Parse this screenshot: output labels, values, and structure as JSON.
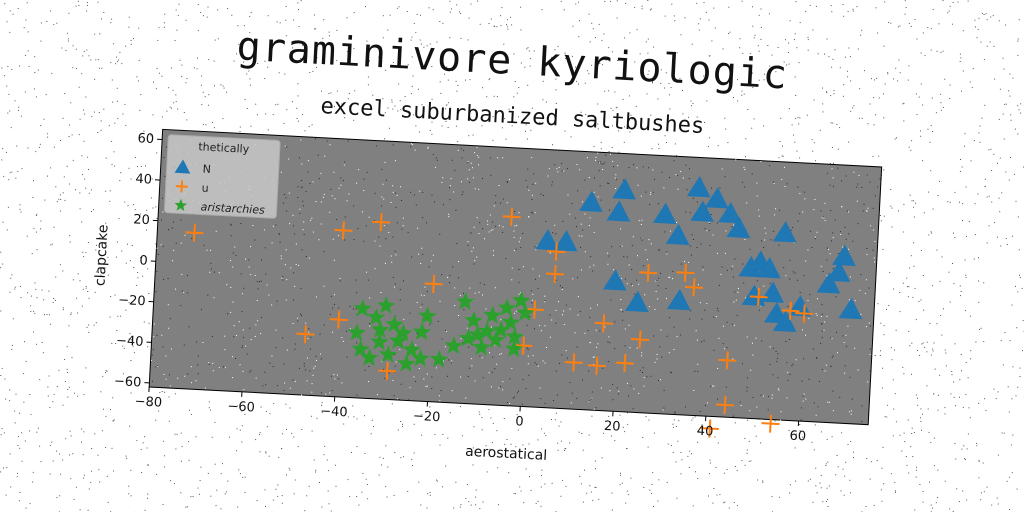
{
  "chart_data": {
    "type": "scatter",
    "title": "graminivore kyriologic",
    "subtitle": "excel suburbanized saltbushes",
    "xlabel": "aerostatical",
    "ylabel": "clapcake",
    "xlim": [
      -80,
      75
    ],
    "ylim": [
      -62,
      65
    ],
    "xticks": [
      -80,
      -60,
      -40,
      -20,
      0,
      20,
      40,
      60
    ],
    "yticks": [
      -60,
      -40,
      -20,
      0,
      20,
      40,
      60
    ],
    "grid": false,
    "background": "#808080",
    "legend": {
      "title": "thetically",
      "placement": "top-left"
    },
    "series": [
      {
        "name": "N",
        "marker": "triangle",
        "color": "#1f77b4",
        "points": [
          [
            4,
            20
          ],
          [
            8,
            20
          ],
          [
            13,
            40
          ],
          [
            19,
            36
          ],
          [
            20,
            47
          ],
          [
            19,
            2
          ],
          [
            24,
            -8
          ],
          [
            29,
            36
          ],
          [
            32,
            26
          ],
          [
            33,
            -6
          ],
          [
            36,
            50
          ],
          [
            37,
            38
          ],
          [
            40,
            45
          ],
          [
            43,
            38
          ],
          [
            45,
            31
          ],
          [
            48,
            12
          ],
          [
            49,
            -2
          ],
          [
            50,
            15
          ],
          [
            52,
            12
          ],
          [
            53,
            0
          ],
          [
            55,
            30
          ],
          [
            54,
            -10
          ],
          [
            56,
            -14
          ],
          [
            59,
            -6
          ],
          [
            65,
            6
          ],
          [
            67,
            12
          ],
          [
            68,
            20
          ],
          [
            70,
            -6
          ]
        ]
      },
      {
        "name": "u",
        "marker": "plus",
        "color": "#ff7f0e",
        "points": [
          [
            -72,
            15
          ],
          [
            -47,
            -32
          ],
          [
            -40,
            20
          ],
          [
            -40,
            -24
          ],
          [
            -32,
            25
          ],
          [
            -29,
            -48
          ],
          [
            -20,
            -4
          ],
          [
            -4,
            31
          ],
          [
            2,
            -14
          ],
          [
            0,
            -32
          ],
          [
            6,
            4
          ],
          [
            6,
            15
          ],
          [
            11,
            -39
          ],
          [
            16,
            -40
          ],
          [
            17,
            -19
          ],
          [
            22,
            -38
          ],
          [
            25,
            -26
          ],
          [
            26,
            7
          ],
          [
            34,
            8
          ],
          [
            36,
            1
          ],
          [
            41,
            -68
          ],
          [
            44,
            -56
          ],
          [
            44,
            -34
          ],
          [
            50,
            -2
          ],
          [
            54,
            -64
          ],
          [
            57,
            -8
          ],
          [
            60,
            -9
          ]
        ]
      },
      {
        "name": "aristarchies",
        "marker": "star",
        "color": "#2ca02c",
        "points": [
          [
            -35,
            -18
          ],
          [
            -36,
            -30
          ],
          [
            -35,
            -38
          ],
          [
            -33,
            -42
          ],
          [
            -32,
            -22
          ],
          [
            -31,
            -28
          ],
          [
            -31,
            -34
          ],
          [
            -30,
            -16
          ],
          [
            -29,
            -40
          ],
          [
            -28,
            -25
          ],
          [
            -27,
            -33
          ],
          [
            -26,
            -29
          ],
          [
            -25,
            -44
          ],
          [
            -24,
            -37
          ],
          [
            -22,
            -28
          ],
          [
            -22,
            -41
          ],
          [
            -21,
            -20
          ],
          [
            -18,
            -41
          ],
          [
            -15,
            -34
          ],
          [
            -13,
            -12
          ],
          [
            -12,
            -30
          ],
          [
            -11,
            -21
          ],
          [
            -10,
            -28
          ],
          [
            -9,
            -34
          ],
          [
            -8,
            -26
          ],
          [
            -7,
            -18
          ],
          [
            -6,
            -30
          ],
          [
            -5,
            -25
          ],
          [
            -4,
            -14
          ],
          [
            -3,
            -21
          ],
          [
            -2,
            -28
          ],
          [
            -1,
            -10
          ],
          [
            0,
            -16
          ],
          [
            -2,
            -34
          ]
        ]
      }
    ]
  }
}
